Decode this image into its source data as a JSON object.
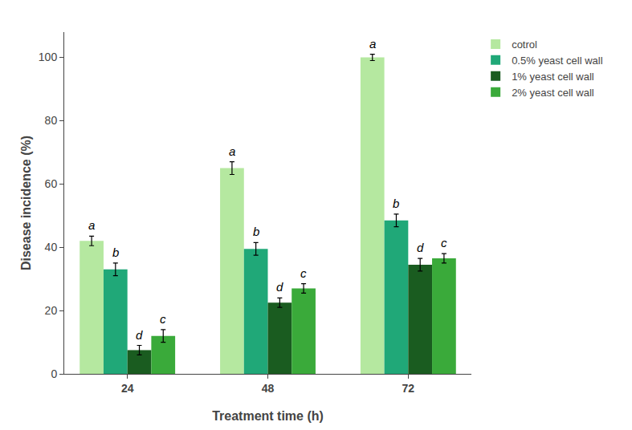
{
  "chart_data": {
    "type": "bar",
    "categories": [
      "24",
      "48",
      "72"
    ],
    "series": [
      {
        "name": "cotrol",
        "color": "#b5e8a0",
        "values": [
          42.0,
          65.0,
          100.0
        ],
        "errors": [
          1.5,
          2.0,
          1.0
        ],
        "annotations": [
          "a",
          "a",
          "a"
        ]
      },
      {
        "name": "0.5% yeast cell wall",
        "color": "#20a878",
        "values": [
          33.0,
          39.5,
          48.5
        ],
        "errors": [
          2.0,
          2.0,
          2.0
        ],
        "annotations": [
          "b",
          "b",
          "b"
        ]
      },
      {
        "name": "1% yeast cell wall",
        "color": "#1a5c20",
        "values": [
          7.5,
          22.5,
          34.5
        ],
        "errors": [
          1.5,
          1.5,
          2.0
        ],
        "annotations": [
          "d",
          "d",
          "d"
        ]
      },
      {
        "name": "2% yeast cell wall",
        "color": "#3aaa3a",
        "values": [
          12.0,
          27.0,
          36.5
        ],
        "errors": [
          2.0,
          1.5,
          1.5
        ],
        "annotations": [
          "c",
          "c",
          "c"
        ]
      }
    ],
    "xlabel": "Treatment time (h)",
    "ylabel": "Disease incidence (%)",
    "ylim": [
      0,
      108
    ],
    "yticks": [
      0,
      20,
      40,
      60,
      80,
      100
    ],
    "grid": false,
    "legend": "upper right"
  }
}
